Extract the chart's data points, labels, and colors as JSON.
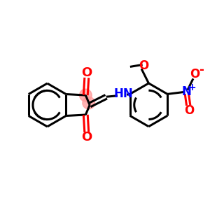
{
  "background_color": "#ffffff",
  "bond_color": "#000000",
  "oxygen_color": "#ff0000",
  "nitrogen_color": "#0000ff",
  "highlight_color": "#ff9999",
  "line_width": 2.2,
  "figsize": [
    3.0,
    3.0
  ],
  "dpi": 100,
  "xlim": [
    0,
    10
  ],
  "ylim": [
    0,
    10
  ]
}
